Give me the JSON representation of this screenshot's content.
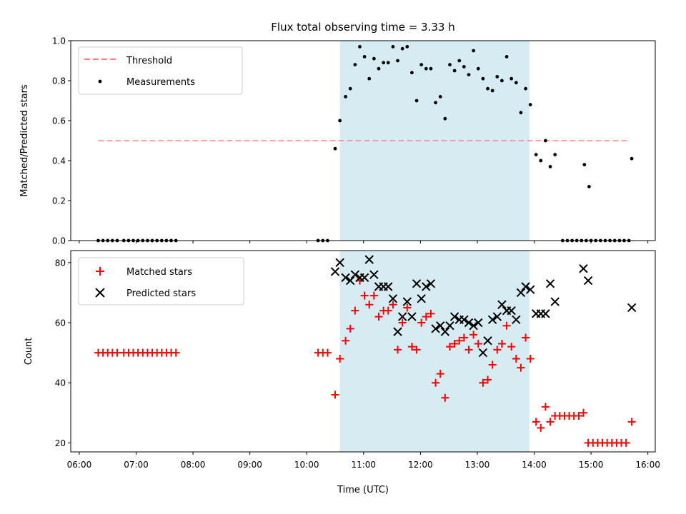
{
  "chart_data": [
    {
      "type": "scatter",
      "title": "Flux total observing time = 3.33 h",
      "ylabel": "Matched/Predicted stars",
      "ylim": [
        0,
        1.0
      ],
      "yticks": [
        "0.0",
        "0.2",
        "0.4",
        "0.6",
        "0.8",
        "1.0"
      ],
      "shaded_interval": [
        "10:35",
        "13:55"
      ],
      "legend_position": "upper-left",
      "threshold": {
        "name": "Threshold",
        "value": 0.5,
        "x_range": [
          "06:20",
          "15:40"
        ],
        "color": "#ff7b7b"
      },
      "measurements": {
        "name": "Measurements",
        "color": "#000000",
        "points": [
          [
            "06:20",
            0
          ],
          [
            "06:25",
            0
          ],
          [
            "06:30",
            0
          ],
          [
            "06:35",
            0
          ],
          [
            "06:40",
            0
          ],
          [
            "06:47",
            0
          ],
          [
            "06:52",
            0
          ],
          [
            "06:57",
            0
          ],
          [
            "07:02",
            0
          ],
          [
            "07:07",
            0
          ],
          [
            "07:12",
            0
          ],
          [
            "07:17",
            0
          ],
          [
            "07:22",
            0
          ],
          [
            "07:27",
            0
          ],
          [
            "07:32",
            0
          ],
          [
            "07:37",
            0
          ],
          [
            "07:42",
            0
          ],
          [
            "10:12",
            0
          ],
          [
            "10:17",
            0
          ],
          [
            "10:22",
            0
          ],
          [
            "10:30",
            0.46
          ],
          [
            "10:35",
            0.6
          ],
          [
            "10:41",
            0.72
          ],
          [
            "10:46",
            0.76
          ],
          [
            "10:51",
            0.88
          ],
          [
            "10:56",
            0.97
          ],
          [
            "11:01",
            0.92
          ],
          [
            "11:06",
            0.81
          ],
          [
            "11:11",
            0.91
          ],
          [
            "11:16",
            0.86
          ],
          [
            "11:21",
            0.89
          ],
          [
            "11:26",
            0.89
          ],
          [
            "11:31",
            0.97
          ],
          [
            "11:36",
            0.9
          ],
          [
            "11:41",
            0.96
          ],
          [
            "11:46",
            0.97
          ],
          [
            "11:51",
            0.84
          ],
          [
            "11:56",
            0.7
          ],
          [
            "12:01",
            0.88
          ],
          [
            "12:06",
            0.86
          ],
          [
            "12:11",
            0.86
          ],
          [
            "12:16",
            0.69
          ],
          [
            "12:21",
            0.72
          ],
          [
            "12:26",
            0.61
          ],
          [
            "12:31",
            0.88
          ],
          [
            "12:36",
            0.85
          ],
          [
            "12:41",
            0.9
          ],
          [
            "12:46",
            0.87
          ],
          [
            "12:51",
            0.83
          ],
          [
            "12:56",
            0.95
          ],
          [
            "13:01",
            0.86
          ],
          [
            "13:06",
            0.81
          ],
          [
            "13:11",
            0.76
          ],
          [
            "13:16",
            0.75
          ],
          [
            "13:21",
            0.82
          ],
          [
            "13:26",
            0.8
          ],
          [
            "13:31",
            0.92
          ],
          [
            "13:36",
            0.81
          ],
          [
            "13:41",
            0.79
          ],
          [
            "13:46",
            0.64
          ],
          [
            "13:51",
            0.76
          ],
          [
            "13:56",
            0.68
          ],
          [
            "14:02",
            0.43
          ],
          [
            "14:07",
            0.4
          ],
          [
            "14:12",
            0.5
          ],
          [
            "14:17",
            0.37
          ],
          [
            "14:22",
            0.43
          ],
          [
            "14:30",
            0
          ],
          [
            "14:35",
            0
          ],
          [
            "14:40",
            0
          ],
          [
            "14:45",
            0
          ],
          [
            "14:50",
            0
          ],
          [
            "14:55",
            0
          ],
          [
            "15:00",
            0
          ],
          [
            "15:05",
            0
          ],
          [
            "15:10",
            0
          ],
          [
            "15:15",
            0
          ],
          [
            "15:20",
            0
          ],
          [
            "15:25",
            0
          ],
          [
            "15:30",
            0
          ],
          [
            "15:35",
            0
          ],
          [
            "15:40",
            0
          ],
          [
            "14:53",
            0.38
          ],
          [
            "14:58",
            0.27
          ],
          [
            "15:43",
            0.41
          ]
        ]
      }
    },
    {
      "type": "scatter",
      "xlabel": "Time (UTC)",
      "ylabel": "Count",
      "ylim": [
        17,
        84
      ],
      "yticks": [
        "20",
        "40",
        "60",
        "80"
      ],
      "xticks": [
        "06:00",
        "07:00",
        "08:00",
        "09:00",
        "10:00",
        "11:00",
        "12:00",
        "13:00",
        "14:00",
        "15:00",
        "16:00"
      ],
      "shaded_interval": [
        "10:35",
        "13:55"
      ],
      "legend_position": "upper-left",
      "series": [
        {
          "name": "Matched stars",
          "marker": "plus",
          "color": "#ff0000",
          "points": [
            [
              "06:20",
              50
            ],
            [
              "06:25",
              50
            ],
            [
              "06:30",
              50
            ],
            [
              "06:35",
              50
            ],
            [
              "06:40",
              50
            ],
            [
              "06:47",
              50
            ],
            [
              "06:52",
              50
            ],
            [
              "06:57",
              50
            ],
            [
              "07:02",
              50
            ],
            [
              "07:07",
              50
            ],
            [
              "07:12",
              50
            ],
            [
              "07:17",
              50
            ],
            [
              "07:22",
              50
            ],
            [
              "07:27",
              50
            ],
            [
              "07:32",
              50
            ],
            [
              "07:37",
              50
            ],
            [
              "07:42",
              50
            ],
            [
              "10:12",
              50
            ],
            [
              "10:17",
              50
            ],
            [
              "10:22",
              50
            ],
            [
              "10:30",
              36
            ],
            [
              "10:35",
              48
            ],
            [
              "10:41",
              54
            ],
            [
              "10:46",
              58
            ],
            [
              "10:51",
              64
            ],
            [
              "10:56",
              74
            ],
            [
              "11:01",
              69
            ],
            [
              "11:06",
              66
            ],
            [
              "11:11",
              69
            ],
            [
              "11:16",
              62
            ],
            [
              "11:21",
              64
            ],
            [
              "11:26",
              64
            ],
            [
              "11:31",
              66
            ],
            [
              "11:36",
              51
            ],
            [
              "11:41",
              60
            ],
            [
              "11:46",
              65
            ],
            [
              "11:51",
              52
            ],
            [
              "11:56",
              51
            ],
            [
              "12:01",
              60
            ],
            [
              "12:06",
              62
            ],
            [
              "12:11",
              63
            ],
            [
              "12:16",
              40
            ],
            [
              "12:21",
              43
            ],
            [
              "12:26",
              35
            ],
            [
              "12:31",
              52
            ],
            [
              "12:36",
              53
            ],
            [
              "12:41",
              54
            ],
            [
              "12:46",
              55
            ],
            [
              "12:51",
              51
            ],
            [
              "12:56",
              56
            ],
            [
              "13:01",
              53
            ],
            [
              "13:06",
              40
            ],
            [
              "13:11",
              41
            ],
            [
              "13:16",
              46
            ],
            [
              "13:21",
              51
            ],
            [
              "13:26",
              53
            ],
            [
              "13:31",
              59
            ],
            [
              "13:36",
              52
            ],
            [
              "13:41",
              48
            ],
            [
              "13:46",
              45
            ],
            [
              "13:51",
              55
            ],
            [
              "13:56",
              48
            ],
            [
              "14:02",
              27
            ],
            [
              "14:07",
              25
            ],
            [
              "14:12",
              32
            ],
            [
              "14:17",
              27
            ],
            [
              "14:22",
              29
            ],
            [
              "14:27",
              29
            ],
            [
              "14:32",
              29
            ],
            [
              "14:37",
              29
            ],
            [
              "14:42",
              29
            ],
            [
              "14:47",
              29
            ],
            [
              "14:52",
              30
            ],
            [
              "14:57",
              20
            ],
            [
              "15:02",
              20
            ],
            [
              "15:07",
              20
            ],
            [
              "15:12",
              20
            ],
            [
              "15:17",
              20
            ],
            [
              "15:22",
              20
            ],
            [
              "15:27",
              20
            ],
            [
              "15:32",
              20
            ],
            [
              "15:37",
              20
            ],
            [
              "15:43",
              27
            ]
          ]
        },
        {
          "name": "Predicted stars",
          "marker": "x",
          "color": "#000000",
          "points": [
            [
              "10:30",
              77
            ],
            [
              "10:35",
              80
            ],
            [
              "10:41",
              75
            ],
            [
              "10:46",
              74
            ],
            [
              "10:51",
              76
            ],
            [
              "10:56",
              75
            ],
            [
              "11:01",
              75
            ],
            [
              "11:06",
              81
            ],
            [
              "11:11",
              76
            ],
            [
              "11:16",
              72
            ],
            [
              "11:21",
              72
            ],
            [
              "11:26",
              72
            ],
            [
              "11:31",
              68
            ],
            [
              "11:36",
              57
            ],
            [
              "11:41",
              62
            ],
            [
              "11:46",
              67
            ],
            [
              "11:51",
              62
            ],
            [
              "11:56",
              73
            ],
            [
              "12:01",
              68
            ],
            [
              "12:06",
              72
            ],
            [
              "12:11",
              73
            ],
            [
              "12:16",
              58
            ],
            [
              "12:21",
              59
            ],
            [
              "12:26",
              57
            ],
            [
              "12:31",
              59
            ],
            [
              "12:36",
              62
            ],
            [
              "12:41",
              61
            ],
            [
              "12:46",
              61
            ],
            [
              "12:51",
              60
            ],
            [
              "12:56",
              59
            ],
            [
              "13:01",
              60
            ],
            [
              "13:06",
              50
            ],
            [
              "13:11",
              54
            ],
            [
              "13:16",
              61
            ],
            [
              "13:21",
              62
            ],
            [
              "13:26",
              66
            ],
            [
              "13:31",
              64
            ],
            [
              "13:36",
              64
            ],
            [
              "13:41",
              61
            ],
            [
              "13:46",
              70
            ],
            [
              "13:51",
              72
            ],
            [
              "13:56",
              71
            ],
            [
              "14:02",
              63
            ],
            [
              "14:07",
              63
            ],
            [
              "14:12",
              63
            ],
            [
              "14:17",
              73
            ],
            [
              "14:22",
              67
            ],
            [
              "14:52",
              78
            ],
            [
              "14:57",
              74
            ],
            [
              "15:43",
              65
            ]
          ]
        }
      ]
    }
  ]
}
